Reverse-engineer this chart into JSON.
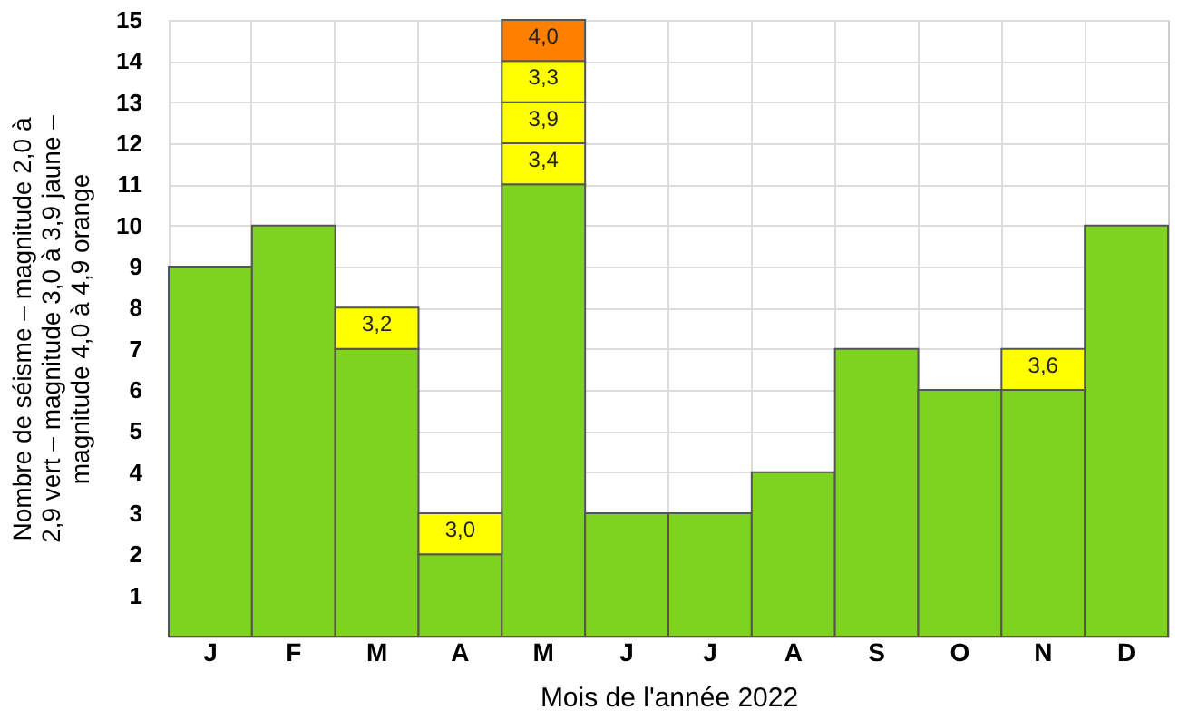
{
  "chart_data": {
    "type": "bar",
    "stacked": true,
    "xlabel": "Mois de l'année 2022",
    "ylabel": "Nombre de séisme – magnitude 2,0 à\n2,9 vert  –  magnitude 3,0 à 3,9 jaune –\nmagnitude 4,0 à 4,9 orange",
    "categories": [
      "J",
      "F",
      "M",
      "A",
      "M",
      "J",
      "J",
      "A",
      "S",
      "O",
      "N",
      "D"
    ],
    "series": [
      {
        "color": "#7ed321",
        "values": [
          9,
          10,
          7,
          2,
          11,
          3,
          3,
          4,
          7,
          6,
          6,
          10
        ]
      },
      {
        "color": "#ffff00",
        "values": [
          null,
          null,
          1,
          1,
          1,
          null,
          null,
          null,
          null,
          null,
          1,
          null
        ]
      },
      {
        "color": "#ffff00",
        "values": [
          null,
          null,
          null,
          null,
          1,
          null,
          null,
          null,
          null,
          null,
          null,
          null
        ]
      },
      {
        "color": "#ffff00",
        "values": [
          null,
          null,
          null,
          null,
          1,
          null,
          null,
          null,
          null,
          null,
          null,
          null
        ]
      },
      {
        "color": "#ff8000",
        "values": [
          null,
          null,
          null,
          null,
          1,
          null,
          null,
          null,
          null,
          null,
          null,
          null
        ]
      }
    ],
    "annotations": [
      {
        "text": "3,2",
        "x": "M",
        "y": 8
      },
      {
        "text": "3,0",
        "x": "A",
        "y": 3
      },
      {
        "text": "3,6",
        "x": "N",
        "y": 7
      },
      "3,4",
      "3,9",
      "3,3",
      "4,0"
    ],
    "ylim": [
      0,
      15
    ],
    "yticks": [
      1,
      2,
      3,
      4,
      5,
      6,
      7,
      8,
      9,
      10,
      11,
      12,
      13,
      14,
      15
    ],
    "grid": true,
    "legend": false
  }
}
